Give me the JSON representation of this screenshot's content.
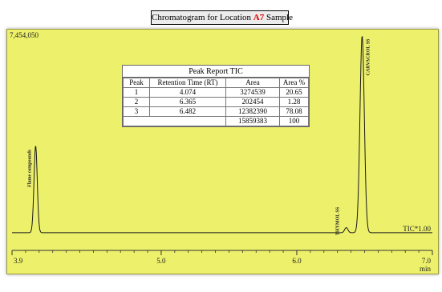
{
  "window": {
    "title_prefix": "Chromatogram for Location ",
    "title_location": "A7",
    "title_suffix": " Sample"
  },
  "chart_data": {
    "type": "line",
    "title": "Chromatogram for Location A7 Sample",
    "xlabel": "min",
    "ylabel": "",
    "xlim": [
      3.9,
      7.0
    ],
    "ylim": [
      0,
      7454050
    ],
    "y_max_label": "7,454,050",
    "x_ticks": [
      "3.9",
      "5.0",
      "6.0",
      "7.0"
    ],
    "x_tick_values": [
      3.9,
      5.0,
      6.0,
      7.0
    ],
    "series": [
      {
        "name": "TIC*1.00",
        "baseline": 620000,
        "peaks": [
          {
            "label": "Flame compounds",
            "rt": 4.074,
            "height": 3050000,
            "width": 0.012
          },
          {
            "label": "THYMOL SS",
            "rt": 6.365,
            "height": 180000,
            "width": 0.012
          },
          {
            "label": "CARVACROL SS",
            "rt": 6.482,
            "height": 6900000,
            "width": 0.016
          }
        ]
      }
    ],
    "peak_report": {
      "title": "Peak Report TIC",
      "columns": [
        "Peak",
        "Retention Time (RT)",
        "Area",
        "Area %"
      ],
      "rows": [
        [
          "1",
          "4.074",
          "3274539",
          "20.65"
        ],
        [
          "2",
          "6.365",
          "202454",
          "1.28"
        ],
        [
          "3",
          "6.482",
          "12382390",
          "78.08"
        ]
      ],
      "total": [
        "",
        "",
        "15859383",
        "100"
      ]
    },
    "grid": false,
    "colors": {
      "background": "#edf06a",
      "trace": "#1a1a1a",
      "title_location": "#e00000"
    }
  }
}
